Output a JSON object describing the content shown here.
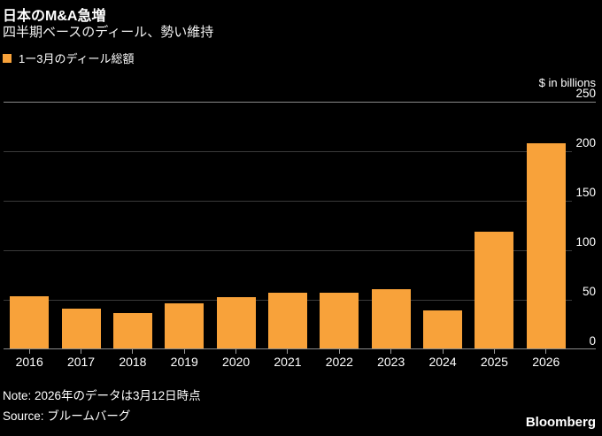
{
  "header": {
    "title": "日本のM&A急増",
    "subtitle": "四半期ベースのディール、勢い維持"
  },
  "legend": {
    "label": "1ー3月のディール総額",
    "swatch_color": "#F8A23A"
  },
  "axis": {
    "unit_label": "$ in billions"
  },
  "chart_data": {
    "type": "bar",
    "title": "日本のM&A急増",
    "subtitle": "四半期ベースのディール、勢い維持",
    "series_name": "1ー3月のディール総額",
    "categories": [
      "2016",
      "2017",
      "2018",
      "2019",
      "2020",
      "2021",
      "2022",
      "2023",
      "2024",
      "2025",
      "2026"
    ],
    "values": [
      54,
      41,
      37,
      46,
      53,
      57,
      57,
      61,
      39,
      119,
      208
    ],
    "xlabel": "",
    "ylabel": "$ in billions",
    "ylim": [
      0,
      250
    ],
    "yticks": [
      250,
      200,
      150,
      100,
      50,
      0
    ],
    "grid": "horizontal",
    "legend_position": "top-left",
    "bar_color": "#F8A23A"
  },
  "footer": {
    "note": "Note: 2026年のデータは3月12日時点",
    "source": "Source: ブルームバーグ",
    "brand": "Bloomberg"
  },
  "colors": {
    "background": "#000000",
    "accent": "#F8A23A",
    "grid_minor": "#3A3A3A",
    "grid_major": "#8A8A8A",
    "text": "#FFFFFF"
  }
}
